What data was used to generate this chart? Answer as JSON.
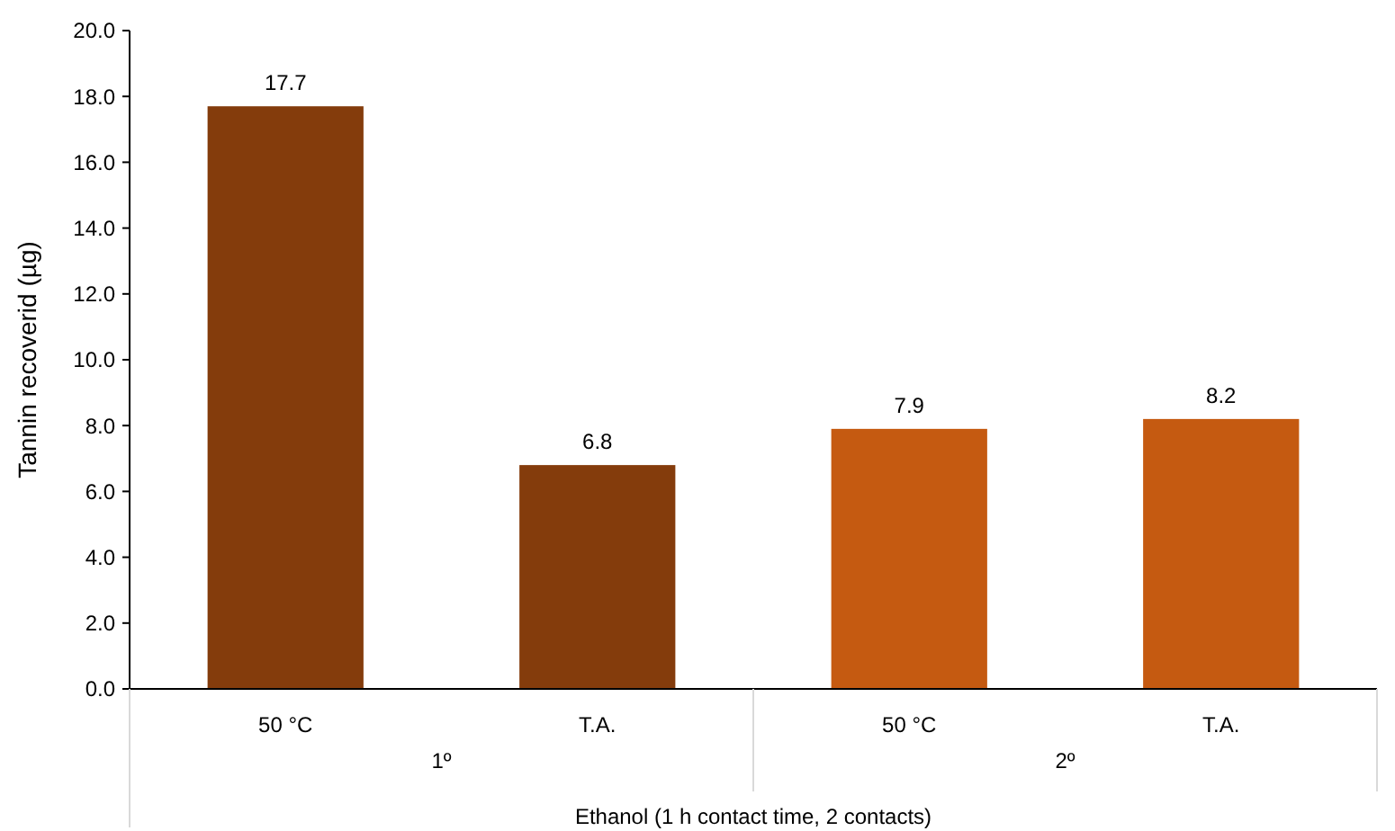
{
  "chart_data": {
    "type": "bar",
    "ylabel": "Tannin recoverid (µg)",
    "xlabel": "Ethanol (1 h  contact time, 2 contacts)",
    "categories": [
      "50 °C",
      "T.A.",
      "50 °C",
      "T.A."
    ],
    "values": [
      17.7,
      6.8,
      7.9,
      8.2
    ],
    "colors": [
      "#843c0c",
      "#843c0c",
      "#c55a11",
      "#c55a11"
    ],
    "annotations": [
      "1º",
      "2º"
    ],
    "ylim": [
      0,
      20
    ],
    "yticks": [
      {
        "value": 0,
        "label": "0.0"
      },
      {
        "value": 2,
        "label": "2.0"
      },
      {
        "value": 4,
        "label": "4.0"
      },
      {
        "value": 6,
        "label": "6.0"
      },
      {
        "value": 8,
        "label": "8.0"
      },
      {
        "value": 10,
        "label": "10.0"
      },
      {
        "value": 12,
        "label": "12.0"
      },
      {
        "value": 14,
        "label": "14.0"
      },
      {
        "value": 16,
        "label": "16.0"
      },
      {
        "value": 18,
        "label": "18.0"
      },
      {
        "value": 20,
        "label": "20.0"
      }
    ],
    "data_labels": true,
    "grid": false
  }
}
